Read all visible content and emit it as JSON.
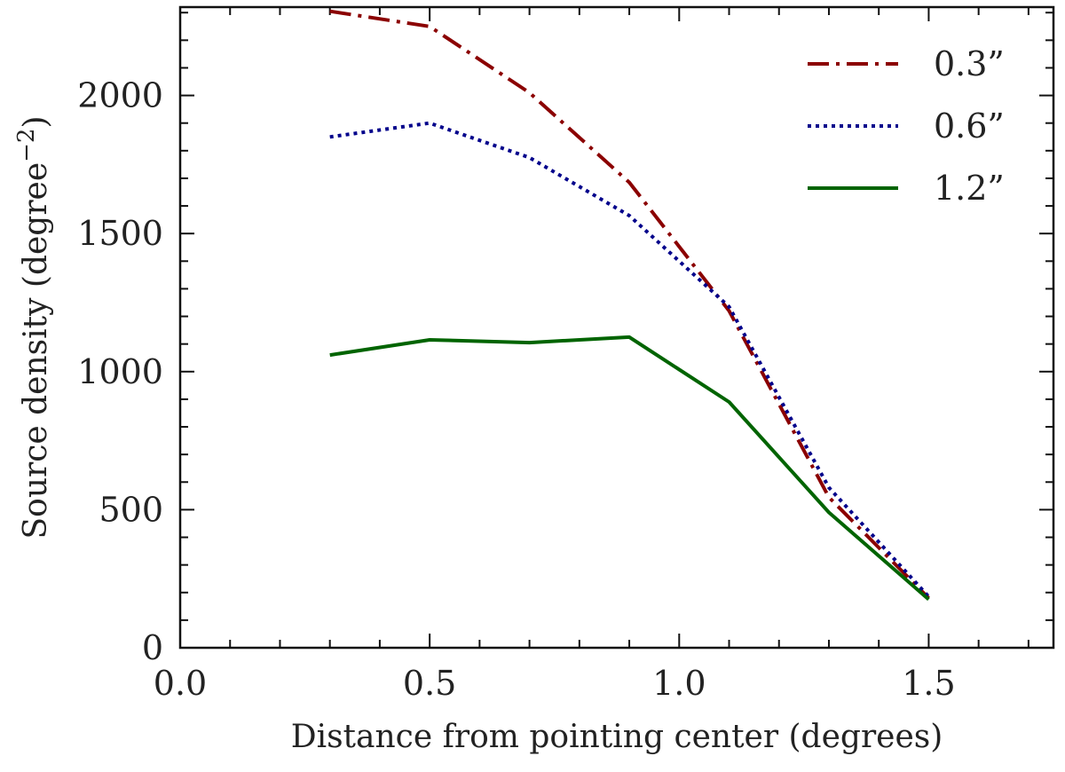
{
  "chart_data": {
    "type": "line",
    "title": "",
    "xlabel": "Distance from pointing center (degrees)",
    "ylabel_main": "Source density (degree",
    "ylabel_sup": "−2",
    "ylabel_close": ")",
    "xlim": [
      0.0,
      1.75
    ],
    "ylim": [
      0,
      2320
    ],
    "xticks": [
      {
        "value": 0.0,
        "label": "0.0"
      },
      {
        "value": 0.5,
        "label": "0.5"
      },
      {
        "value": 1.0,
        "label": "1.0"
      },
      {
        "value": 1.5,
        "label": "1.5"
      }
    ],
    "yticks": [
      {
        "value": 0,
        "label": "0"
      },
      {
        "value": 500,
        "label": "500"
      },
      {
        "value": 1000,
        "label": "1000"
      },
      {
        "value": 1500,
        "label": "1500"
      },
      {
        "value": 2000,
        "label": "2000"
      }
    ],
    "x": [
      0.3,
      0.5,
      0.7,
      0.9,
      1.1,
      1.3,
      1.5
    ],
    "series": [
      {
        "name": "0.3”",
        "key": "0-3",
        "color": "#8b0000",
        "dash": "dashdot",
        "values": [
          2305,
          2250,
          2010,
          1685,
          1220,
          545,
          180
        ]
      },
      {
        "name": "0.6”",
        "key": "0-6",
        "color": "#00008b",
        "dash": "dotted",
        "values": [
          1850,
          1900,
          1775,
          1565,
          1235,
          580,
          185
        ]
      },
      {
        "name": "1.2”",
        "key": "1-2",
        "color": "#006400",
        "dash": "solid",
        "values": [
          1060,
          1115,
          1105,
          1125,
          890,
          490,
          175
        ]
      }
    ],
    "legend_position": "top-right",
    "grid": false
  }
}
